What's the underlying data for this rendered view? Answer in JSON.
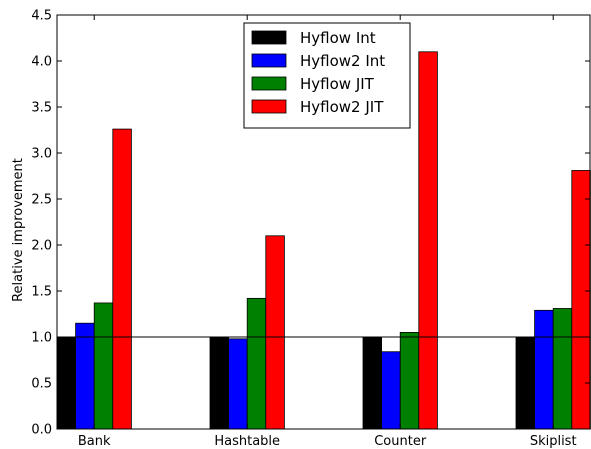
{
  "chart_data": {
    "type": "bar",
    "title": "",
    "xlabel": "",
    "ylabel": "Relative improvement",
    "ylim": [
      0,
      4.5
    ],
    "yticks": [
      "0.0",
      "0.5",
      "1.0",
      "1.5",
      "2.0",
      "2.5",
      "3.0",
      "3.5",
      "4.0",
      "4.5"
    ],
    "categories": [
      "Bank",
      "Hashtable",
      "Counter",
      "Skiplist"
    ],
    "reference_line": 1.0,
    "legend_position": "top-center",
    "grid": false,
    "series": [
      {
        "name": "Hyflow Int",
        "color": "#000000",
        "values": [
          1.0,
          1.0,
          1.0,
          1.0
        ]
      },
      {
        "name": "Hyflow2 Int",
        "color": "#0000ff",
        "values": [
          1.15,
          0.98,
          0.84,
          1.29
        ]
      },
      {
        "name": "Hyflow JIT",
        "color": "#008000",
        "values": [
          1.37,
          1.42,
          1.05,
          1.31
        ]
      },
      {
        "name": "Hyflow2 JIT",
        "color": "#ff0000",
        "values": [
          3.26,
          2.1,
          4.1,
          2.81
        ]
      }
    ]
  }
}
